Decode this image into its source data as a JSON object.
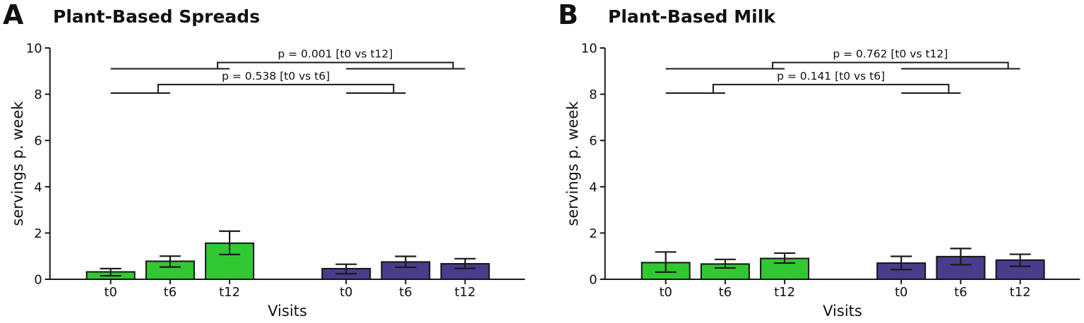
{
  "chart_data": [
    {
      "type": "bar",
      "panel_letter": "A",
      "title": "Plant-Based Spreads",
      "xlabel": "Visits",
      "ylabel": "servings p. week",
      "ylim": [
        0,
        10
      ],
      "yticks": [
        0,
        2,
        4,
        6,
        8,
        10
      ],
      "grid": false,
      "legend": "none",
      "categories": [
        "t0",
        "t6",
        "t12"
      ],
      "series": [
        {
          "name": "green-group",
          "color": "#32c832",
          "values": [
            0.32,
            0.78,
            1.56
          ],
          "err_plus": [
            0.14,
            0.22,
            0.52
          ],
          "err_minus": [
            0.17,
            0.25,
            0.49
          ]
        },
        {
          "name": "purple-group",
          "color": "#483d8b",
          "values": [
            0.46,
            0.75,
            0.67
          ],
          "err_plus": [
            0.19,
            0.24,
            0.22
          ],
          "err_minus": [
            0.22,
            0.23,
            0.2
          ]
        }
      ],
      "significance": [
        {
          "label": "p = 0.538 [t0 vs t6]",
          "p": 0.538,
          "compare": [
            "t0",
            "t6"
          ],
          "line_y": 8.05,
          "bracket_y": 8.42
        },
        {
          "label": "p = 0.001 [t0 vs t12]",
          "p": 0.001,
          "compare": [
            "t0",
            "t12"
          ],
          "line_y": 9.1,
          "bracket_y": 9.37
        }
      ]
    },
    {
      "type": "bar",
      "panel_letter": "B",
      "title": "Plant-Based Milk",
      "xlabel": "Visits",
      "ylabel": "servings p. week",
      "ylim": [
        0,
        10
      ],
      "yticks": [
        0,
        2,
        4,
        6,
        8,
        10
      ],
      "grid": false,
      "legend": "none",
      "categories": [
        "t0",
        "t6",
        "t12"
      ],
      "series": [
        {
          "name": "green-group",
          "color": "#32c832",
          "values": [
            0.72,
            0.66,
            0.9
          ],
          "err_plus": [
            0.46,
            0.2,
            0.23
          ],
          "err_minus": [
            0.41,
            0.17,
            0.2
          ]
        },
        {
          "name": "purple-group",
          "color": "#483d8b",
          "values": [
            0.7,
            0.98,
            0.83
          ],
          "err_plus": [
            0.29,
            0.35,
            0.25
          ],
          "err_minus": [
            0.28,
            0.35,
            0.27
          ]
        }
      ],
      "significance": [
        {
          "label": "p = 0.141 [t0 vs t6]",
          "p": 0.141,
          "compare": [
            "t0",
            "t6"
          ],
          "line_y": 8.05,
          "bracket_y": 8.42
        },
        {
          "label": "p = 0.762 [t0 vs t12]",
          "p": 0.762,
          "compare": [
            "t0",
            "t12"
          ],
          "line_y": 9.1,
          "bracket_y": 9.37
        }
      ]
    }
  ]
}
